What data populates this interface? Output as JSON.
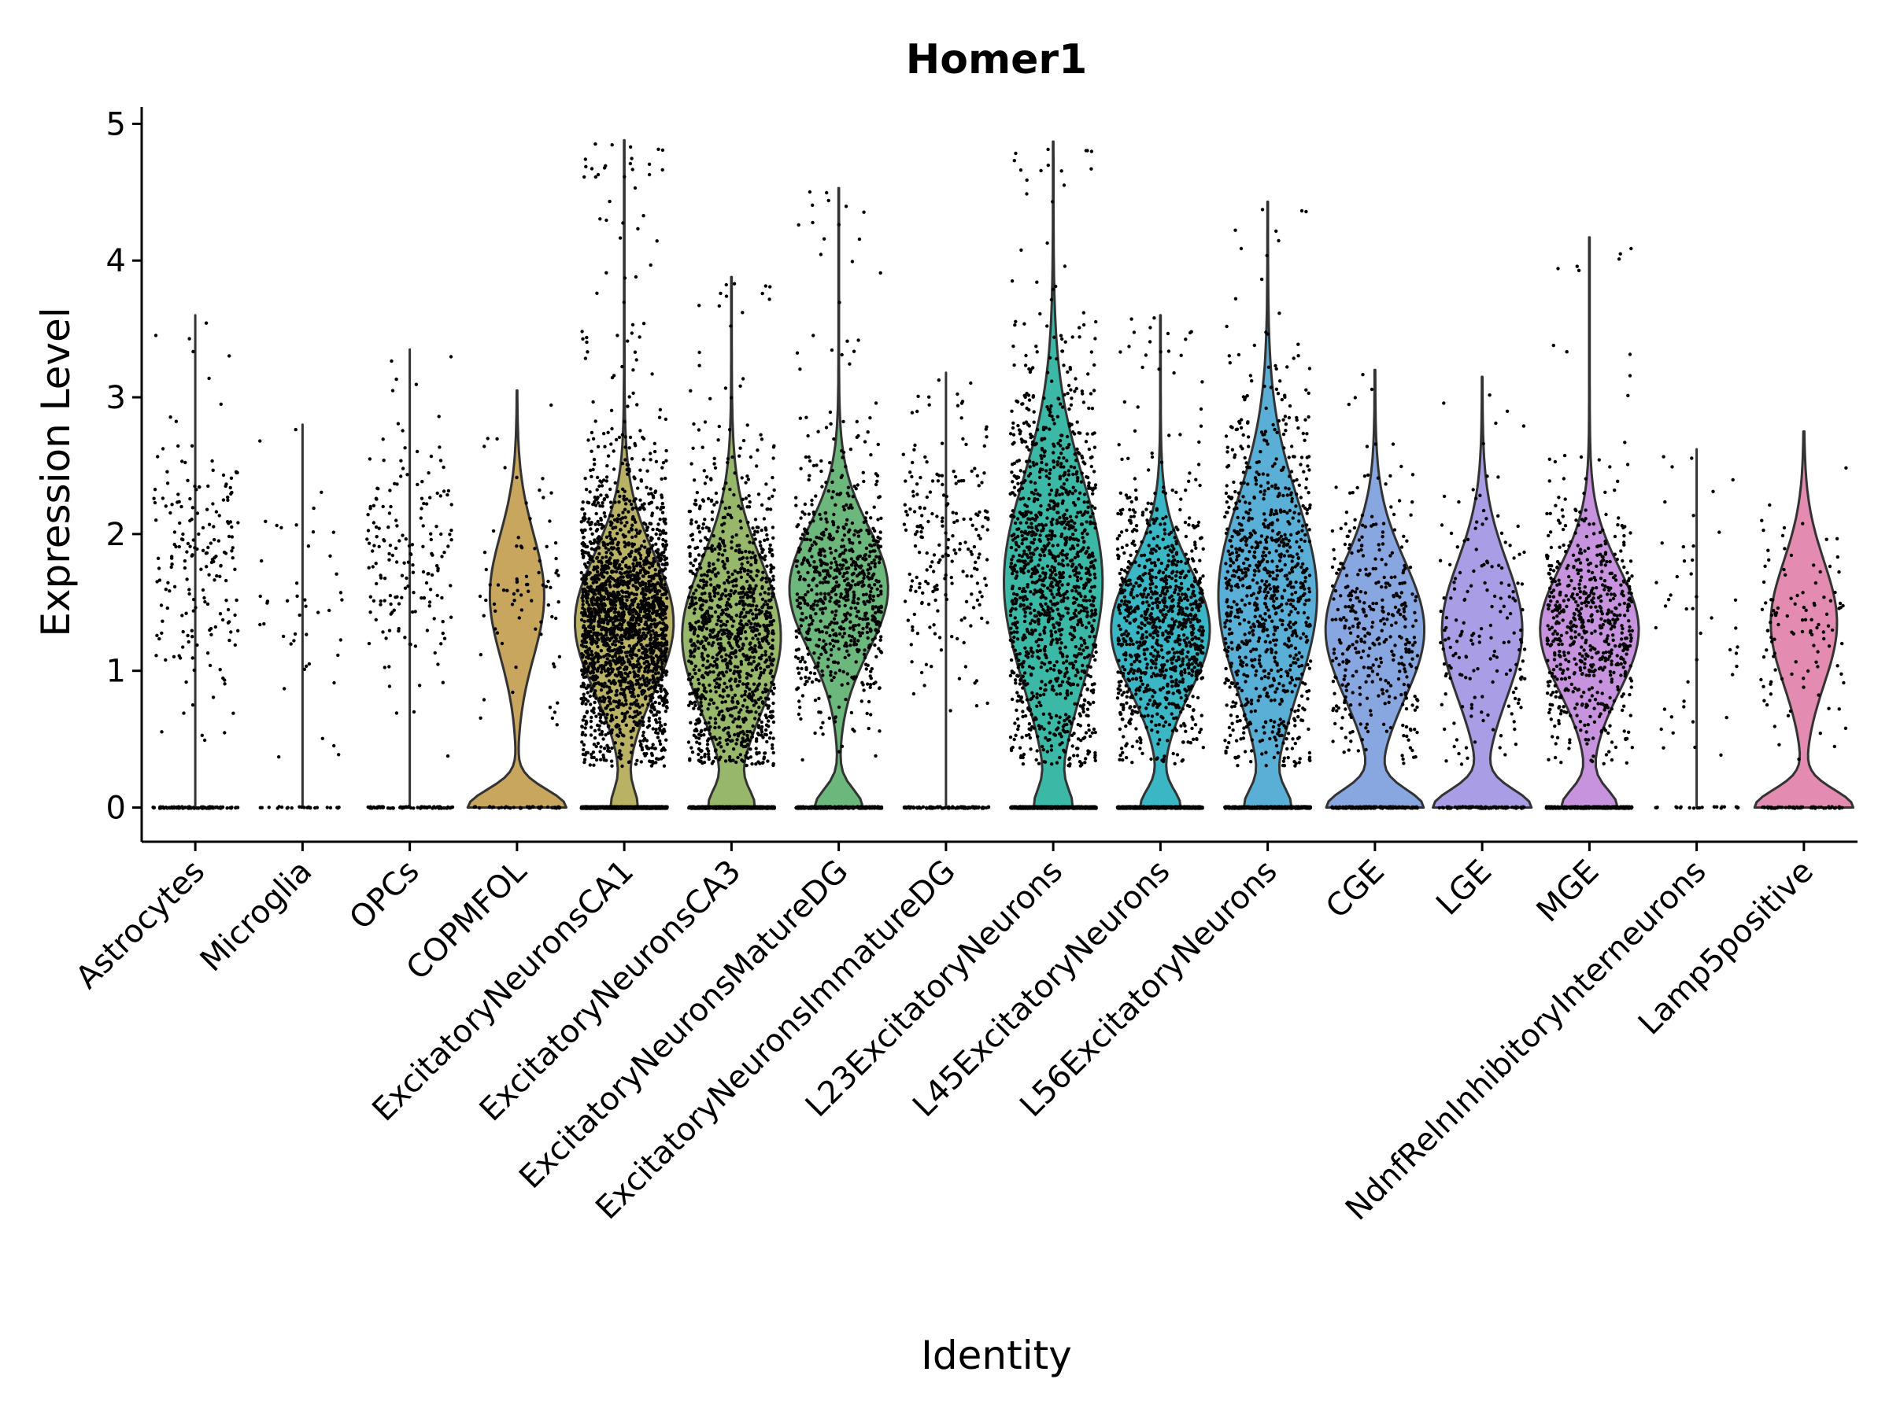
{
  "chart_data": {
    "type": "violin",
    "title": "Homer1",
    "xlabel": "Identity",
    "ylabel": "Expression Level",
    "ylim": [
      -0.25,
      5.1
    ],
    "yticks": [
      0,
      1,
      2,
      3,
      4,
      5
    ],
    "grid": false,
    "legend": "none",
    "point_color": "#000000",
    "categories": [
      {
        "name": "Astrocytes",
        "color": null,
        "max": 3.6,
        "has_violin": false,
        "dots": 190,
        "zero_frac": 0.6,
        "center": 1.7,
        "spread": 0.5
      },
      {
        "name": "Microglia",
        "color": null,
        "max": 2.8,
        "has_violin": false,
        "dots": 45,
        "zero_frac": 0.7,
        "center": 1.5,
        "spread": 0.6
      },
      {
        "name": "OPCs",
        "color": null,
        "max": 3.35,
        "has_violin": false,
        "dots": 170,
        "zero_frac": 0.6,
        "center": 1.8,
        "spread": 0.5
      },
      {
        "name": "COPMFOL",
        "color": "#c8a65e",
        "max": 3.05,
        "has_violin": true,
        "dots": 80,
        "zero_frac": 0.45,
        "center": 1.55,
        "spread": 0.45
      },
      {
        "name": "ExcitatoryNeuronsCA1",
        "color": "#b9b164",
        "max": 4.88,
        "has_violin": true,
        "dots": 2200,
        "zero_frac": 0.1,
        "center": 1.35,
        "spread": 0.5
      },
      {
        "name": "ExcitatoryNeuronsCA3",
        "color": "#97b76a",
        "max": 3.88,
        "has_violin": true,
        "dots": 1200,
        "zero_frac": 0.15,
        "center": 1.25,
        "spread": 0.55
      },
      {
        "name": "ExcitatoryNeuronsMatureDG",
        "color": "#6cb77c",
        "max": 4.53,
        "has_violin": true,
        "dots": 750,
        "zero_frac": 0.18,
        "center": 1.6,
        "spread": 0.45
      },
      {
        "name": "ExcitatoryNeuronsImmatureDG",
        "color": null,
        "max": 3.18,
        "has_violin": false,
        "dots": 210,
        "zero_frac": 0.5,
        "center": 1.85,
        "spread": 0.45
      },
      {
        "name": "L23ExcitatoryNeurons",
        "color": "#3bb8a6",
        "max": 4.87,
        "has_violin": true,
        "dots": 1300,
        "zero_frac": 0.12,
        "center": 1.65,
        "spread": 0.75
      },
      {
        "name": "L45ExcitatoryNeurons",
        "color": "#3ab6c4",
        "max": 3.6,
        "has_violin": true,
        "dots": 1000,
        "zero_frac": 0.15,
        "center": 1.3,
        "spread": 0.45
      },
      {
        "name": "L56ExcitatoryNeurons",
        "color": "#5aafd6",
        "max": 4.43,
        "has_violin": true,
        "dots": 900,
        "zero_frac": 0.15,
        "center": 1.55,
        "spread": 0.7
      },
      {
        "name": "CGE",
        "color": "#88a6e0",
        "max": 3.2,
        "has_violin": true,
        "dots": 380,
        "zero_frac": 0.3,
        "center": 1.3,
        "spread": 0.5
      },
      {
        "name": "LGE",
        "color": "#a99de6",
        "max": 3.15,
        "has_violin": true,
        "dots": 170,
        "zero_frac": 0.35,
        "center": 1.3,
        "spread": 0.5
      },
      {
        "name": "MGE",
        "color": "#c793df",
        "max": 4.17,
        "has_violin": true,
        "dots": 650,
        "zero_frac": 0.2,
        "center": 1.3,
        "spread": 0.45
      },
      {
        "name": "NdnfRelnInhibitoryInterneurons",
        "color": null,
        "max": 2.62,
        "has_violin": false,
        "dots": 45,
        "zero_frac": 0.75,
        "center": 1.4,
        "spread": 0.6
      },
      {
        "name": "Lamp5positive",
        "color": "#e48bb2",
        "max": 2.75,
        "has_violin": true,
        "dots": 110,
        "zero_frac": 0.4,
        "center": 1.35,
        "spread": 0.45
      }
    ]
  }
}
